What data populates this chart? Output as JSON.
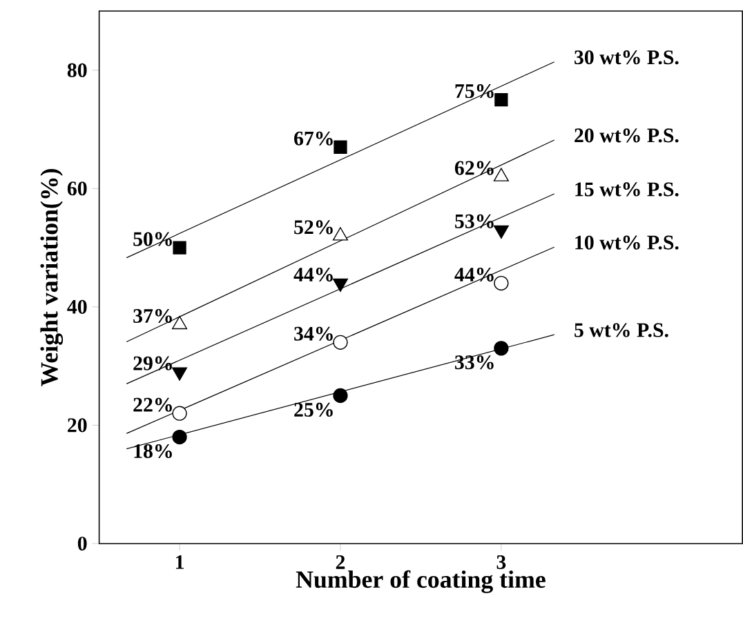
{
  "chart_data": {
    "type": "scatter",
    "xlabel": "Number of coating time",
    "ylabel": "Weight variation(%)",
    "xlim": [
      0.5,
      4.5
    ],
    "ylim": [
      0,
      90
    ],
    "xticks": [
      1,
      2,
      3
    ],
    "yticks": [
      0,
      20,
      40,
      60,
      80
    ],
    "series": [
      {
        "x": [
          1,
          2,
          3
        ],
        "values": [
          50,
          67,
          75
        ],
        "value_labels": [
          "50%",
          "67%",
          "75%"
        ],
        "color": "#000000",
        "marker": "square"
      },
      {
        "x": [
          1,
          2,
          3
        ],
        "values": [
          37,
          52,
          62
        ],
        "value_labels": [
          "37%",
          "52%",
          "62%"
        ],
        "color": "#ffffff",
        "marker": "triangle"
      },
      {
        "x": [
          1,
          2,
          3
        ],
        "values": [
          29,
          44,
          53
        ],
        "value_labels": [
          "29%",
          "44%",
          "53%"
        ],
        "color": "#000000",
        "marker": "triangle-down"
      },
      {
        "x": [
          1,
          2,
          3
        ],
        "values": [
          22,
          34,
          44
        ],
        "value_labels": [
          "22%",
          "34%",
          "44%"
        ],
        "color": "#ffffff",
        "marker": "circle"
      },
      {
        "x": [
          1,
          2,
          3
        ],
        "values": [
          18,
          25,
          33
        ],
        "value_labels": [
          "18%",
          "25%",
          "33%"
        ],
        "color": "#000000",
        "marker": "circle"
      },
      {
        "type": "line",
        "name": "30 wt% P.S.",
        "x": [
          0.67,
          3.33
        ],
        "values": [
          48.3,
          81.4
        ],
        "color": "#000000",
        "marker": "none"
      },
      {
        "type": "line",
        "name": "20 wt% P.S.",
        "x": [
          0.67,
          3.33
        ],
        "values": [
          34.1,
          68.2
        ],
        "color": "#000000",
        "marker": "none"
      },
      {
        "type": "line",
        "name": "15 wt% P.S.",
        "x": [
          0.67,
          3.33
        ],
        "values": [
          27.0,
          59.1
        ],
        "color": "#000000",
        "marker": "none"
      },
      {
        "type": "line",
        "name": "10 wt% P.S.",
        "x": [
          0.67,
          3.33
        ],
        "values": [
          18.6,
          50.1
        ],
        "color": "#000000",
        "marker": "none"
      },
      {
        "type": "line",
        "name": "5 wt% P.S.",
        "x": [
          0.67,
          3.33
        ],
        "values": [
          16.0,
          35.3
        ],
        "color": "#000000",
        "marker": "none"
      }
    ]
  }
}
